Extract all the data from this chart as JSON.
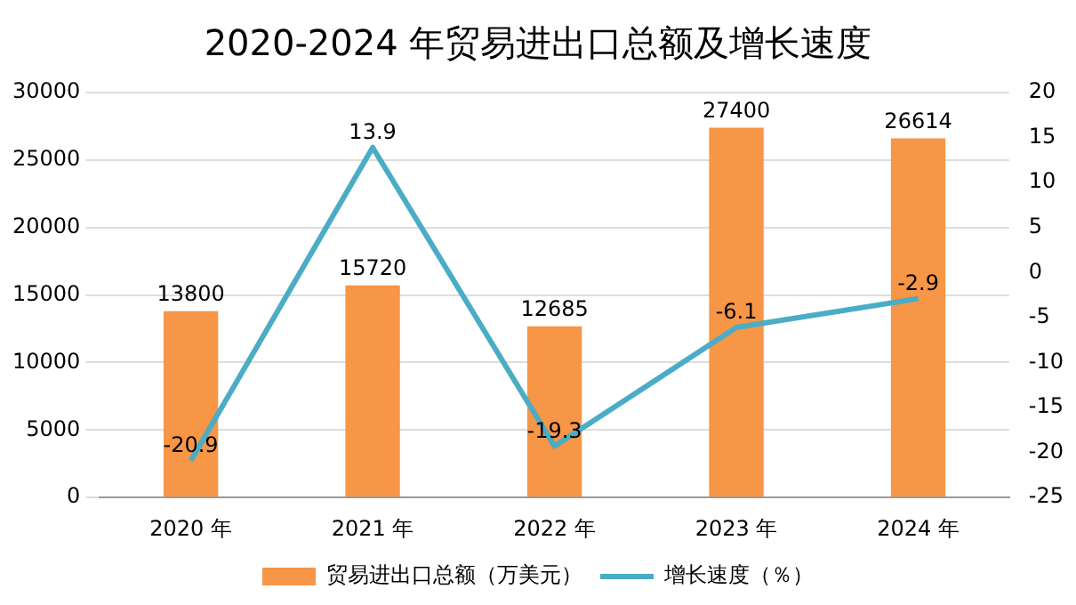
{
  "chart_data": {
    "type": "bar",
    "title": "2020-2024 年贸易进出口总额及增长速度",
    "categories": [
      "2020 年",
      "2021 年",
      "2022 年",
      "2023 年",
      "2024 年"
    ],
    "series": [
      {
        "name": "贸易进出口总额（万美元）",
        "color": "#f79646",
        "values": [
          13800,
          15720,
          12685,
          27400,
          26614
        ]
      },
      {
        "name": "增长速度（％）",
        "type": "line",
        "axis": "y2",
        "color": "#4bacc6",
        "values": [
          -20.9,
          13.9,
          -19.3,
          -6.1,
          -2.9
        ]
      }
    ],
    "ylim": [
      0,
      30000
    ],
    "yticks": [
      0,
      5000,
      10000,
      15000,
      20000,
      25000,
      30000
    ],
    "y2lim": [
      -25,
      20
    ],
    "y2ticks": [
      -25,
      -20,
      -15,
      -10,
      -5,
      0,
      5,
      10,
      15,
      20
    ],
    "grid": "y",
    "legend": "bottom",
    "data_labels": true,
    "marker": "none",
    "line_style": "solid"
  }
}
